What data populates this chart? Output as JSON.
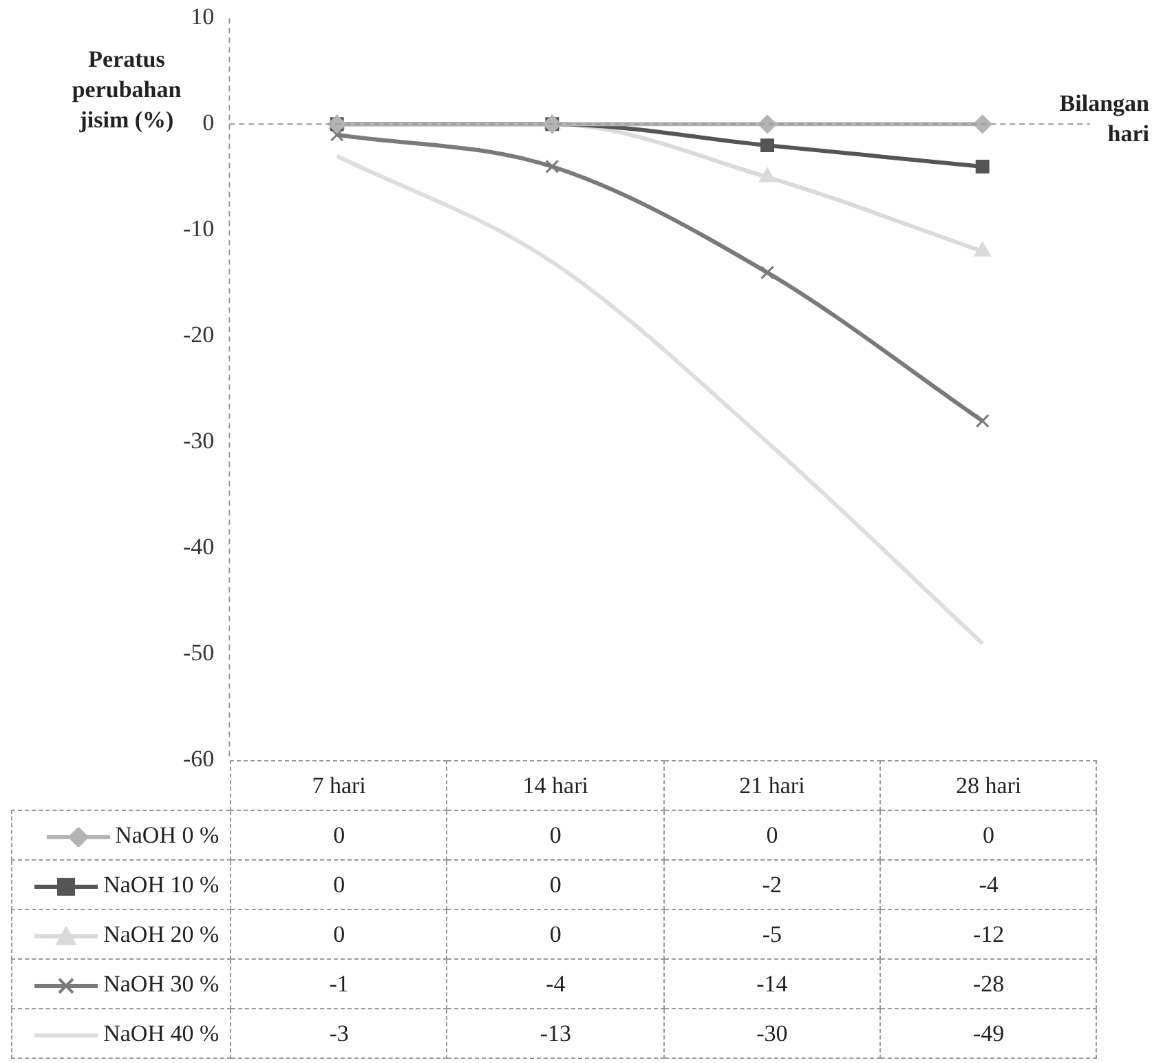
{
  "chart_data": {
    "type": "line",
    "xlabel": "Bilangan hari",
    "ylabel": "Peratus perubahan jisim (%)",
    "categories": [
      "7 hari",
      "14 hari",
      "21 hari",
      "28 hari"
    ],
    "series": [
      {
        "name": "NaOH 0 %",
        "color": "#b4b4b4",
        "marker": "diamond",
        "values": [
          0,
          0,
          0,
          0
        ]
      },
      {
        "name": "NaOH 10 %",
        "color": "#555555",
        "marker": "square",
        "values": [
          0,
          0,
          -2,
          -4
        ]
      },
      {
        "name": "NaOH 20 %",
        "color": "#dadada",
        "marker": "triangle",
        "values": [
          0,
          0,
          -5,
          -12
        ]
      },
      {
        "name": "NaOH 30 %",
        "color": "#7a7a7a",
        "marker": "cross",
        "values": [
          -1,
          -4,
          -14,
          -28
        ]
      },
      {
        "name": "NaOH 40 %",
        "color": "#dedede",
        "marker": "none",
        "values": [
          -3,
          -13,
          -30,
          -49
        ]
      }
    ],
    "ylim": [
      -60,
      10
    ],
    "yticks": [
      -60,
      -50,
      -40,
      -30,
      -20,
      -10,
      0,
      10
    ],
    "ref_lines": [
      {
        "axis": "y",
        "value": 0,
        "color": "#999999",
        "line_style": "dashed"
      }
    ],
    "grid": false,
    "legend": "bottom",
    "data_labels": true
  }
}
